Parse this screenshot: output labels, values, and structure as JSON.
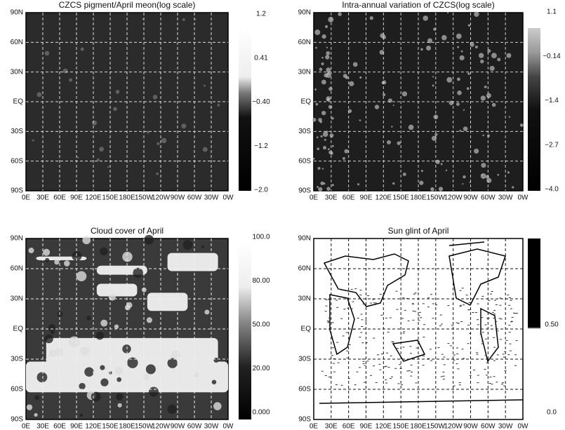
{
  "panels": [
    {
      "title": "CZCS pigment/April meon(log scale)",
      "y_labels": [
        "90N",
        "60N",
        "30N",
        "EQ",
        "30S",
        "60S",
        "90S"
      ],
      "x_labels": [
        "0E",
        "30E",
        "60E",
        "90E",
        "120E",
        "150E",
        "180E",
        "150W",
        "120W",
        "90W",
        "60W",
        "30W",
        "0W"
      ],
      "colorbar_labels": [
        "1.2",
        "0.41",
        "−0.40",
        "−1.2",
        "−2.0"
      ]
    },
    {
      "title": "Intra-annual variation of CZCS(log scale)",
      "y_labels": [
        "90N",
        "60N",
        "30N",
        "EQ",
        "30S",
        "60S",
        "90S"
      ],
      "x_labels": [
        "0E",
        "30E",
        "60E",
        "90E",
        "120E",
        "150E",
        "180E",
        "150W",
        "120W",
        "90W",
        "60W",
        "30W",
        "0W"
      ],
      "colorbar_labels": [
        "1.1",
        "−0.14",
        "−1.4",
        "−2.7",
        "−4.0"
      ]
    },
    {
      "title": "Cloud cover of April",
      "y_labels": [
        "90N",
        "60N",
        "30N",
        "EQ",
        "30S",
        "60S",
        "90S"
      ],
      "x_labels": [
        "0E",
        "30E",
        "60E",
        "90E",
        "120E",
        "150E",
        "180E",
        "150W",
        "120W",
        "90W",
        "60W",
        "30W",
        "0W"
      ],
      "colorbar_labels": [
        "100.0",
        "80.00",
        "50.00",
        "20.00",
        "0.000"
      ]
    },
    {
      "title": "Sun glint of April",
      "y_labels": [
        "90N",
        "60N",
        "30N",
        "EQ",
        "30S",
        "60S",
        "90S"
      ],
      "x_labels": [
        "0E",
        "30E",
        "60E",
        "90E",
        "120E",
        "150E",
        "180E",
        "150W",
        "120W",
        "90W",
        "60W",
        "30W",
        "0W"
      ],
      "colorbar_labels": [
        "0.50",
        "0.0"
      ]
    }
  ]
}
